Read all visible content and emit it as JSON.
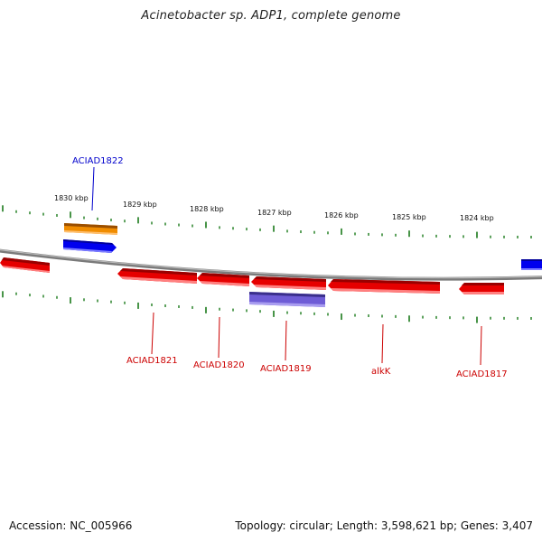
{
  "title": "Acinetobacter sp. ADP1, complete genome",
  "accession_text": "Accession: NC_005966",
  "summary_text": "Topology: circular; Length: 3,598,621 bp; Genes: 3,407",
  "colors": {
    "backbone": "#909090",
    "tick": "#1a7a1a",
    "reverse_gene": "#e60000",
    "forward_gene": "#0000ee",
    "orange_gene": "#f08c00",
    "purple_gene": "#6e5cd6",
    "label_red": "#cc0000",
    "label_blue": "#0000cc"
  },
  "ruler": {
    "labels": [
      "1830 kbp",
      "1829 kbp",
      "1828 kbp",
      "1827 kbp",
      "1826 kbp",
      "1825 kbp",
      "1824 kbp"
    ]
  },
  "genes": [
    {
      "label": "ACIAD1822",
      "strand": "forward",
      "color": "forward_gene"
    },
    {
      "label": "ACIAD1821",
      "strand": "reverse",
      "color": "reverse_gene"
    },
    {
      "label": "ACIAD1820",
      "strand": "reverse",
      "color": "reverse_gene"
    },
    {
      "label": "ACIAD1819",
      "strand": "reverse",
      "color": "reverse_gene"
    },
    {
      "label": "alkK",
      "strand": "reverse",
      "color": "reverse_gene"
    },
    {
      "label": "ACIAD1817",
      "strand": "reverse",
      "color": "reverse_gene"
    }
  ]
}
